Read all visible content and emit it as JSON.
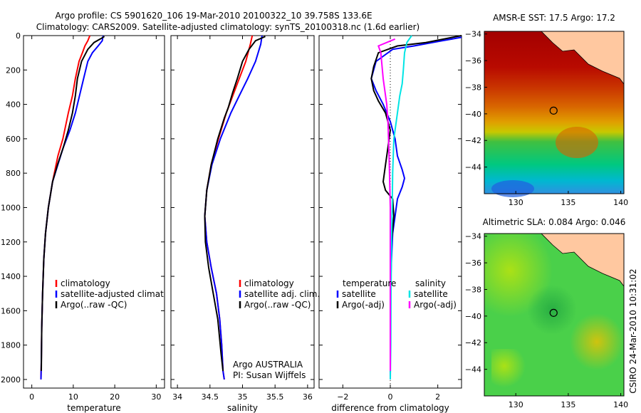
{
  "title_lines": [
    "Argo profile: CS 5901620_106 19-Mar-2010 20100322_10 39.758S 133.6E",
    "Climatology: CARS2009. Satellite-adjusted climatology: synTS_20100318.nc (1.6d earlier)"
  ],
  "side_label": "CSIRO 24-Mar-2010 10:31:02",
  "colors": {
    "red": "#ff0000",
    "blue": "#0000ff",
    "black": "#000000",
    "cyan": "#00e5e5",
    "magenta": "#ff00ff"
  },
  "chart_data": [
    {
      "type": "line",
      "id": "temperature",
      "xlabel": "temperature",
      "xlim": [
        -2,
        32
      ],
      "ylim": [
        2050,
        0
      ],
      "xticks": [
        0,
        10,
        20,
        30
      ],
      "yticks": [
        0,
        200,
        400,
        600,
        800,
        1000,
        1200,
        1400,
        1600,
        1800,
        2000
      ],
      "legend": [
        "climatology",
        "satellite-adjusted climatology",
        "Argo(..raw -QC)"
      ],
      "series": [
        {
          "name": "climatology",
          "color": "red",
          "x": [
            14.0,
            13.5,
            12.8,
            12.2,
            11.4,
            10.5,
            9.8,
            8.8,
            7.5,
            6.3,
            5.0,
            4.0,
            3.3,
            2.9,
            2.6,
            2.4,
            2.3,
            2.2
          ],
          "y": [
            0,
            30,
            60,
            100,
            150,
            250,
            350,
            450,
            600,
            700,
            850,
            1000,
            1150,
            1300,
            1500,
            1700,
            1900,
            2000
          ]
        },
        {
          "name": "satellite-adjusted climatology",
          "color": "blue",
          "x": [
            17.2,
            17.0,
            16.0,
            14.6,
            13.5,
            12.5,
            11.5,
            10.5,
            9.2,
            7.6,
            6.3,
            5.0,
            4.0,
            3.3,
            2.9,
            2.6,
            2.4,
            2.3,
            2.2
          ],
          "y": [
            0,
            30,
            60,
            100,
            150,
            250,
            350,
            450,
            550,
            650,
            750,
            850,
            1000,
            1150,
            1300,
            1500,
            1700,
            1900,
            2000
          ]
        },
        {
          "name": "Argo(..raw -QC)",
          "color": "black",
          "x": [
            17.5,
            16.5,
            15.0,
            13.5,
            12.0,
            11.0,
            10.5,
            9.8,
            8.8,
            7.6,
            6.2,
            5.0,
            4.0,
            3.3,
            2.9,
            2.6,
            2.4,
            2.3
          ],
          "y": [
            5,
            20,
            40,
            80,
            150,
            250,
            350,
            450,
            550,
            650,
            750,
            850,
            1000,
            1150,
            1300,
            1500,
            1700,
            1950
          ]
        }
      ]
    },
    {
      "type": "line",
      "id": "salinity",
      "xlabel": "salinity",
      "xlim": [
        33.9,
        36.1
      ],
      "ylim": [
        2050,
        0
      ],
      "xticks": [
        34,
        34.5,
        35,
        35.5,
        36
      ],
      "legend": [
        "climatology",
        "satellite adj. clim.",
        "Argo(..raw -QC)"
      ],
      "annotations": [
        "Argo AUSTRALIA",
        "PI: Susan Wijffels"
      ],
      "series": [
        {
          "name": "climatology",
          "color": "red",
          "x": [
            35.15,
            35.12,
            35.05,
            34.95,
            34.85,
            34.75,
            34.63,
            34.52,
            34.45,
            34.42,
            34.45,
            34.52,
            34.6,
            34.65,
            34.68,
            34.7,
            34.72
          ],
          "y": [
            0,
            50,
            150,
            250,
            350,
            450,
            600,
            750,
            900,
            1050,
            1200,
            1350,
            1500,
            1650,
            1800,
            1950,
            2000
          ]
        },
        {
          "name": "satellite adj. clim.",
          "color": "blue",
          "x": [
            35.3,
            35.28,
            35.2,
            35.08,
            34.95,
            34.82,
            34.66,
            34.53,
            34.45,
            34.42,
            34.45,
            34.52,
            34.6,
            34.65,
            34.68,
            34.7,
            34.72
          ],
          "y": [
            0,
            50,
            150,
            250,
            350,
            450,
            600,
            750,
            900,
            1050,
            1200,
            1350,
            1500,
            1650,
            1800,
            1950,
            2000
          ]
        },
        {
          "name": "Argo(..raw -QC)",
          "color": "black",
          "x": [
            35.35,
            35.2,
            35.1,
            35.0,
            34.92,
            34.85,
            34.78,
            34.72,
            34.62,
            34.52,
            34.45,
            34.42,
            34.43,
            34.48,
            34.55,
            34.62,
            34.67,
            34.7
          ],
          "y": [
            5,
            30,
            80,
            150,
            250,
            330,
            420,
            480,
            600,
            750,
            900,
            1050,
            1200,
            1350,
            1500,
            1650,
            1850,
            1950
          ]
        }
      ]
    },
    {
      "type": "line",
      "id": "difference",
      "xlabel": "difference from climatology",
      "xlim": [
        -3,
        3
      ],
      "ylim": [
        2050,
        0
      ],
      "xticks": [
        -2,
        0,
        2
      ],
      "legend_groups": [
        {
          "title": "temperature",
          "items": [
            "satellite",
            "Argo(-adj)"
          ]
        },
        {
          "title": "salinity",
          "items": [
            "satellite",
            "Argo(-adj)"
          ]
        }
      ],
      "series": [
        {
          "name": "temperature satellite",
          "color": "blue",
          "x": [
            3.0,
            2.2,
            1.0,
            0.1,
            -0.6,
            -0.8,
            -0.6,
            -0.3,
            0.0,
            0.2,
            0.3,
            0.5,
            0.6,
            0.5,
            0.3,
            0.2,
            0.1,
            0.05,
            0.0,
            0.0,
            0.0
          ],
          "y": [
            10,
            30,
            60,
            80,
            150,
            250,
            320,
            400,
            500,
            600,
            700,
            780,
            830,
            880,
            950,
            1050,
            1150,
            1300,
            1500,
            1800,
            2000
          ]
        },
        {
          "name": "temperature Argo(-adj)",
          "color": "black",
          "x": [
            3.0,
            1.5,
            0.3,
            -0.5,
            -0.7,
            -0.8,
            -0.7,
            -0.5,
            -0.2,
            0.0,
            -0.1,
            -0.2,
            -0.3,
            -0.2,
            0.1,
            0.15,
            0.05,
            0.0,
            0.0
          ],
          "y": [
            0,
            40,
            60,
            100,
            180,
            250,
            320,
            380,
            450,
            550,
            650,
            750,
            850,
            900,
            950,
            1050,
            1200,
            1500,
            1950
          ]
        },
        {
          "name": "salinity satellite",
          "color": "cyan",
          "x": [
            0.9,
            0.7,
            0.6,
            0.55,
            0.5,
            0.4,
            0.3,
            0.15,
            0.1,
            0.08,
            0.05,
            0.03,
            0.02,
            0.0
          ],
          "y": [
            0,
            40,
            100,
            200,
            280,
            350,
            450,
            600,
            800,
            1000,
            1200,
            1500,
            1800,
            2000
          ]
        },
        {
          "name": "salinity Argo(-adj)",
          "color": "magenta",
          "x": [
            0.2,
            -0.5,
            -0.4,
            -0.3,
            -0.15,
            -0.1,
            -0.05,
            0.0,
            0.0,
            0.0
          ],
          "y": [
            20,
            60,
            100,
            250,
            400,
            500,
            700,
            1000,
            1500,
            1950
          ]
        }
      ]
    },
    {
      "type": "heatmap",
      "id": "sst-map",
      "title": "AMSR-E SST: 17.5 Argo: 17.2",
      "xlim": [
        127,
        140.3
      ],
      "ylim": [
        -46,
        -33.8
      ],
      "xticks": [
        130,
        135,
        140
      ],
      "yticks": [
        -34,
        -36,
        -38,
        -40,
        -42,
        -44
      ],
      "marker": {
        "lon": 133.6,
        "lat": -39.758
      }
    },
    {
      "type": "heatmap",
      "id": "sla-map",
      "title": "Altimetric SLA: 0.084 Argo: 0.046",
      "xlim": [
        127,
        140.3
      ],
      "ylim": [
        -46,
        -33.8
      ],
      "xticks": [
        130,
        135,
        140
      ],
      "yticks": [
        -34,
        -36,
        -38,
        -40,
        -42,
        -44
      ],
      "marker": {
        "lon": 133.6,
        "lat": -39.758
      }
    }
  ]
}
